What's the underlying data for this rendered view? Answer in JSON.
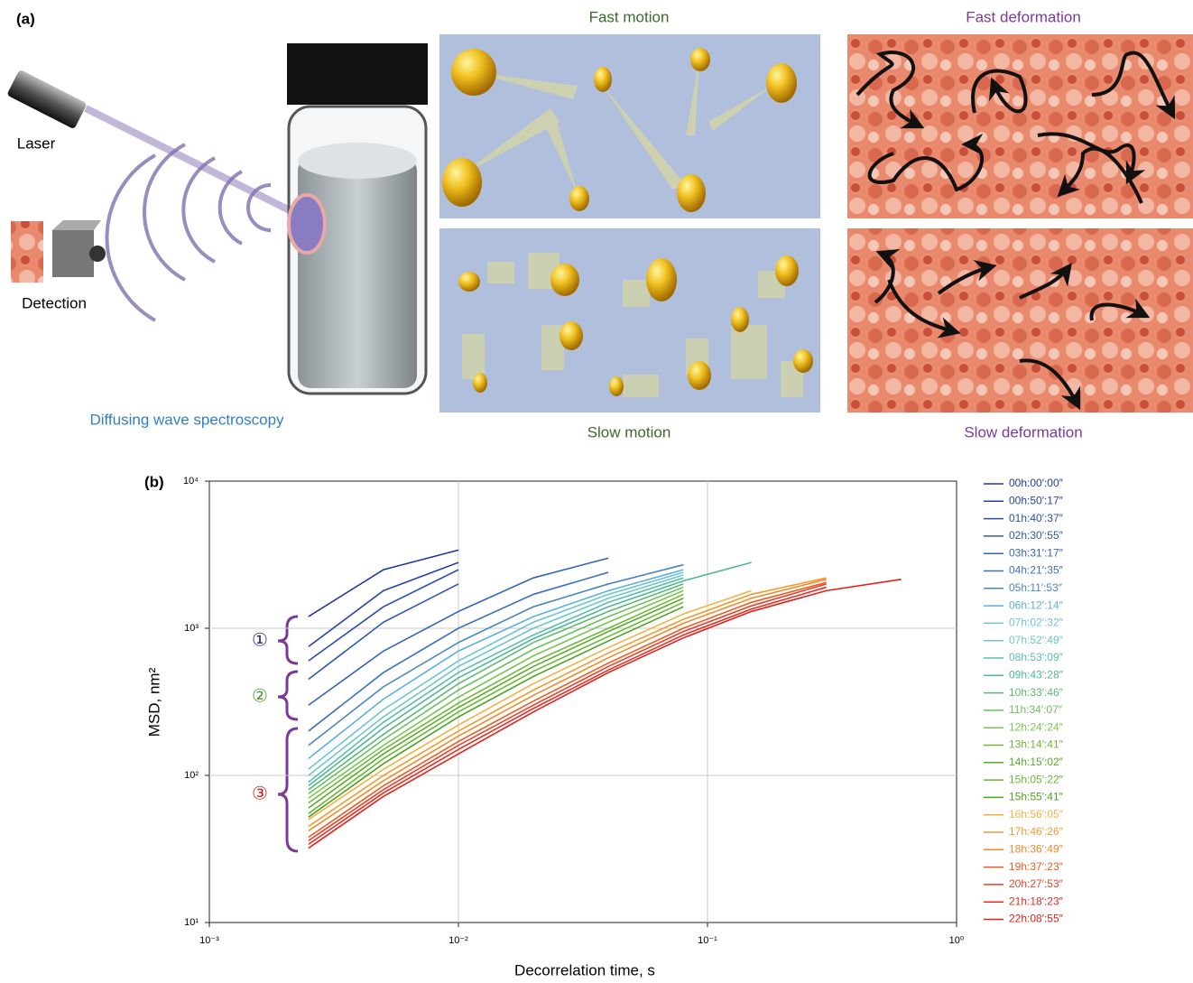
{
  "panel_a": {
    "label": "(a)",
    "laser": "Laser",
    "detection": "Detection",
    "method": "Diffusing wave spectroscopy",
    "fast_motion": "Fast motion",
    "slow_motion": "Slow motion",
    "fast_deformation": "Fast deformation",
    "slow_deformation": "Slow deformation"
  },
  "chart_data": {
    "type": "line",
    "panel_label": "(b)",
    "x_label": "Decorrelation time, s",
    "y_label": "MSD, nm²",
    "log_x": true,
    "log_y": true,
    "grid": true,
    "xlim": [
      0.001,
      1
    ],
    "ylim": [
      10,
      10000
    ],
    "xticks": [
      {
        "value": 0.001,
        "label": "10⁻³"
      },
      {
        "value": 0.01,
        "label": "10⁻²"
      },
      {
        "value": 0.1,
        "label": "10⁻¹"
      },
      {
        "value": 1,
        "label": "10⁰"
      }
    ],
    "yticks": [
      {
        "value": 10,
        "label": "10¹"
      },
      {
        "value": 100,
        "label": "10²"
      },
      {
        "value": 1000,
        "label": "10³"
      },
      {
        "value": 10000,
        "label": "10⁴"
      }
    ],
    "x": [
      0.0025,
      0.005,
      0.01,
      0.02,
      0.04,
      0.08,
      0.15,
      0.3,
      0.6
    ],
    "annotations": [
      {
        "text": "①",
        "color": "#2a2a8a"
      },
      {
        "text": "②",
        "color": "#4a9a30"
      },
      {
        "text": "③",
        "color": "#d02020"
      }
    ],
    "series": [
      {
        "name": "00h:00′:00″",
        "color": "#1f3a9a",
        "values": [
          1200,
          2500,
          3400,
          null,
          null,
          null,
          null,
          null,
          null
        ]
      },
      {
        "name": "00h:50′:17″",
        "color": "#2444a4",
        "values": [
          750,
          1800,
          2800,
          null,
          null,
          null,
          null,
          null,
          null
        ]
      },
      {
        "name": "01h:40′:37″",
        "color": "#284eac",
        "values": [
          600,
          1400,
          2500,
          null,
          null,
          null,
          null,
          null,
          null
        ]
      },
      {
        "name": "02h:30′:55″",
        "color": "#2d58b2",
        "values": [
          450,
          1100,
          2000,
          null,
          null,
          null,
          null,
          null,
          null
        ]
      },
      {
        "name": "03h:31′:17″",
        "color": "#3464b6",
        "values": [
          300,
          700,
          1300,
          2200,
          3000,
          null,
          null,
          null,
          null
        ]
      },
      {
        "name": "04h:21′:35″",
        "color": "#3c72ba",
        "values": [
          200,
          500,
          1000,
          1700,
          2400,
          null,
          null,
          null,
          null
        ]
      },
      {
        "name": "05h:11′:53″",
        "color": "#4886c0",
        "values": [
          160,
          400,
          800,
          1400,
          2000,
          2700,
          null,
          null,
          null
        ]
      },
      {
        "name": "06h:12′:14″",
        "color": "#5cb0da",
        "values": [
          130,
          330,
          700,
          1200,
          1800,
          2500,
          null,
          null,
          null
        ]
      },
      {
        "name": "07h:02′:32″",
        "color": "#6cc4d6",
        "values": [
          110,
          280,
          600,
          1100,
          1700,
          2400,
          null,
          null,
          null
        ]
      },
      {
        "name": "07h:52′:49″",
        "color": "#6ec6c8",
        "values": [
          100,
          250,
          550,
          1000,
          1600,
          2300,
          null,
          null,
          null
        ]
      },
      {
        "name": "08h:53′:09″",
        "color": "#5abea8",
        "values": [
          90,
          230,
          500,
          900,
          1500,
          2200,
          null,
          null,
          null
        ]
      },
      {
        "name": "09h:43′:28″",
        "color": "#4fb698",
        "values": [
          85,
          210,
          460,
          850,
          1400,
          2100,
          2800,
          null,
          null
        ]
      },
      {
        "name": "10h:33′:46″",
        "color": "#5cb870",
        "values": [
          80,
          190,
          420,
          800,
          1300,
          2000,
          null,
          null,
          null
        ]
      },
      {
        "name": "11h:34′:07″",
        "color": "#6abf60",
        "values": [
          75,
          175,
          380,
          720,
          1200,
          1900,
          null,
          null,
          null
        ]
      },
      {
        "name": "12h:24′:24″",
        "color": "#7ac44f",
        "values": [
          70,
          160,
          340,
          650,
          1100,
          1800,
          null,
          null,
          null
        ]
      },
      {
        "name": "13h:14′:41″",
        "color": "#6db83a",
        "values": [
          65,
          150,
          310,
          590,
          1000,
          1700,
          null,
          null,
          null
        ]
      },
      {
        "name": "14h:15′:02″",
        "color": "#5aac2a",
        "values": [
          60,
          140,
          290,
          550,
          950,
          1600,
          null,
          null,
          null
        ]
      },
      {
        "name": "15h:05′:22″",
        "color": "#66b830",
        "values": [
          55,
          130,
          270,
          510,
          880,
          1500,
          null,
          null,
          null
        ]
      },
      {
        "name": "15h:55′:41″",
        "color": "#4ea020",
        "values": [
          52,
          120,
          250,
          470,
          820,
          1400,
          null,
          null,
          null
        ]
      },
      {
        "name": "16h:56′:05″",
        "color": "#f5b040",
        "values": [
          50,
          110,
          220,
          420,
          740,
          1250,
          1800,
          null,
          null
        ]
      },
      {
        "name": "17h:46′:26″",
        "color": "#f29a30",
        "values": [
          45,
          100,
          200,
          380,
          680,
          1150,
          1700,
          2200,
          null
        ]
      },
      {
        "name": "18h:36′:49″",
        "color": "#f08a28",
        "values": [
          42,
          92,
          185,
          350,
          630,
          1080,
          1600,
          2150,
          null
        ]
      },
      {
        "name": "19h:37′:23″",
        "color": "#ec5a20",
        "values": [
          38,
          85,
          170,
          320,
          580,
          1000,
          1500,
          2050,
          null
        ]
      },
      {
        "name": "20h:27′:53″",
        "color": "#e8402a",
        "values": [
          36,
          80,
          160,
          300,
          550,
          950,
          1420,
          2000,
          null
        ]
      },
      {
        "name": "21h:18′:23″",
        "color": "#e52e22",
        "values": [
          34,
          76,
          150,
          285,
          520,
          900,
          1350,
          1900,
          null
        ]
      },
      {
        "name": "22h:08′:55″",
        "color": "#e32018",
        "values": [
          32,
          72,
          140,
          270,
          500,
          860,
          1300,
          1800,
          2150
        ]
      }
    ]
  }
}
